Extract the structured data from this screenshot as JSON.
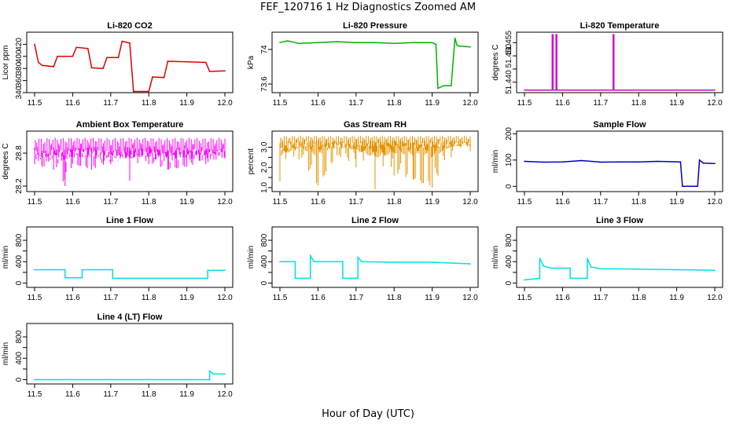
{
  "figure": {
    "title": "FEF_120716  1 Hz Diagnostics Zoomed AM",
    "xlabel": "Hour of Day (UTC)"
  },
  "chart_data": [
    {
      "type": "line",
      "title": "Li-820 CO2",
      "ylabel": "Licor ppm",
      "color": "#e00000",
      "xlim": [
        11.5,
        12.0
      ],
      "ylim": [
        340,
        440
      ],
      "yticks": [
        340,
        360,
        380,
        400,
        420
      ],
      "xticks": [
        11.5,
        11.6,
        11.7,
        11.8,
        11.9,
        12.0
      ],
      "series": [
        {
          "x": [
            11.5,
            11.51,
            11.52,
            11.55,
            11.56,
            11.6,
            11.61,
            11.64,
            11.65,
            11.68,
            11.69,
            11.72,
            11.73,
            11.75,
            11.76,
            11.8,
            11.81,
            11.84,
            11.85,
            11.95,
            11.96,
            12.0
          ],
          "y": [
            420,
            390,
            385,
            383,
            400,
            400,
            415,
            413,
            381,
            380,
            398,
            398,
            425,
            422,
            342,
            342,
            366,
            365,
            392,
            390,
            375,
            376
          ]
        }
      ]
    },
    {
      "type": "line",
      "title": "Li-820 Pressure",
      "ylabel": "kPa",
      "color": "#00b000",
      "xlim": [
        11.5,
        12.0
      ],
      "ylim": [
        73.5,
        74.2
      ],
      "yticks": [
        73.6,
        74.0
      ],
      "xticks": [
        11.5,
        11.6,
        11.7,
        11.8,
        11.9,
        12.0
      ],
      "series": [
        {
          "x": [
            11.5,
            11.52,
            11.55,
            11.6,
            11.65,
            11.7,
            11.75,
            11.8,
            11.85,
            11.9,
            11.91,
            11.915,
            11.93,
            11.95,
            11.96,
            11.965,
            11.97,
            12.0
          ],
          "y": [
            74.08,
            74.1,
            74.07,
            74.08,
            74.09,
            74.08,
            74.08,
            74.07,
            74.08,
            74.08,
            74.06,
            73.55,
            73.58,
            73.58,
            74.13,
            74.05,
            74.04,
            74.03
          ]
        }
      ]
    },
    {
      "type": "line",
      "title": "Li-820 Temperature",
      "ylabel": "degrees C",
      "color": "#d000d0",
      "xlim": [
        11.5,
        12.0
      ],
      "ylim": [
        51.436,
        51.459
      ],
      "yticks": [
        51.44,
        51.445,
        51.45,
        51.455
      ],
      "ytick_labels": [
        "51.440",
        "",
        "51.450",
        "51.455"
      ],
      "xticks": [
        11.5,
        11.6,
        11.7,
        11.8,
        11.9,
        12.0
      ],
      "series": [
        {
          "x": [
            11.5,
            11.573,
            11.573,
            11.575,
            11.575,
            11.583,
            11.583,
            11.585,
            11.585,
            11.733,
            11.733,
            11.735,
            11.735,
            12.0
          ],
          "y": [
            51.437,
            51.437,
            51.458,
            51.458,
            51.437,
            51.437,
            51.458,
            51.458,
            51.437,
            51.437,
            51.458,
            51.458,
            51.437,
            51.437
          ]
        }
      ]
    },
    {
      "type": "line",
      "title": "Ambient Box Temperature",
      "ylabel": "degrees C",
      "color": "#ff00ff",
      "xlim": [
        11.5,
        12.0
      ],
      "ylim": [
        28.1,
        29.2
      ],
      "yticks": [
        28.2,
        28.8
      ],
      "xticks": [
        11.5,
        11.6,
        11.7,
        11.8,
        11.9,
        12.0
      ],
      "series": [
        {
          "x": [
            11.5,
            11.52,
            11.55,
            11.58,
            11.6,
            11.65,
            11.7,
            11.75,
            11.8,
            11.85,
            11.9,
            11.95,
            12.0
          ],
          "y": [
            28.9,
            28.8,
            28.9,
            28.85,
            28.9,
            28.9,
            28.85,
            28.9,
            28.9,
            28.85,
            28.9,
            28.85,
            28.9
          ],
          "min": [
            28.6,
            28.55,
            28.5,
            28.2,
            28.6,
            28.5,
            28.6,
            28.3,
            28.6,
            28.5,
            28.55,
            28.6,
            28.7
          ],
          "max": [
            29.1,
            29.1,
            29.1,
            29.1,
            29.1,
            29.1,
            29.1,
            29.1,
            29.1,
            29.1,
            29.1,
            29.1,
            29.1
          ]
        }
      ]
    },
    {
      "type": "line",
      "title": "Gas Stream RH",
      "ylabel": "percent",
      "color": "#e59400",
      "xlim": [
        11.5,
        12.0
      ],
      "ylim": [
        0.8,
        3.8
      ],
      "yticks": [
        1.0,
        1.5,
        2.0,
        2.5,
        3.0
      ],
      "ytick_labels": [
        "1.0",
        "",
        "2.0",
        "",
        "3.0"
      ],
      "xticks": [
        11.5,
        11.6,
        11.7,
        11.8,
        11.9,
        12.0
      ],
      "series": [
        {
          "x": [
            11.5,
            11.55,
            11.6,
            11.65,
            11.7,
            11.75,
            11.8,
            11.85,
            11.9,
            11.95,
            12.0
          ],
          "y": [
            3.2,
            3.3,
            3.3,
            3.25,
            3.3,
            3.3,
            3.3,
            3.25,
            3.3,
            3.3,
            3.3
          ],
          "min": [
            1.3,
            2.4,
            1.1,
            2.6,
            2.0,
            0.9,
            1.6,
            1.4,
            1.0,
            2.5,
            2.8
          ],
          "max": [
            3.6,
            3.6,
            3.6,
            3.6,
            3.6,
            3.6,
            3.6,
            3.6,
            3.6,
            3.6,
            3.6
          ]
        }
      ]
    },
    {
      "type": "line",
      "title": "Sample Flow",
      "ylabel": "ml/min",
      "color": "#0000c0",
      "xlim": [
        11.5,
        12.0
      ],
      "ylim": [
        -20,
        210
      ],
      "yticks": [
        0,
        100,
        200
      ],
      "xticks": [
        11.5,
        11.6,
        11.7,
        11.8,
        11.9,
        12.0
      ],
      "series": [
        {
          "x": [
            11.5,
            11.55,
            11.6,
            11.65,
            11.7,
            11.75,
            11.8,
            11.85,
            11.91,
            11.915,
            11.955,
            11.96,
            11.97,
            12.0
          ],
          "y": [
            95,
            92,
            93,
            98,
            92,
            93,
            93,
            95,
            93,
            0,
            0,
            100,
            88,
            87
          ]
        }
      ]
    },
    {
      "type": "line",
      "title": "Line 1 Flow",
      "ylabel": "ml/min",
      "color": "#00e0e0",
      "xlim": [
        11.5,
        12.0
      ],
      "ylim": [
        -80,
        1050
      ],
      "yticks": [
        0,
        200,
        400,
        600,
        800
      ],
      "ytick_labels": [
        "0",
        "",
        "400",
        "",
        "800"
      ],
      "xticks": [
        11.5,
        11.6,
        11.7,
        11.8,
        11.9,
        12.0
      ],
      "series": [
        {
          "x": [
            11.5,
            11.58,
            11.58,
            11.625,
            11.625,
            11.705,
            11.705,
            11.955,
            11.955,
            12.0
          ],
          "y": [
            250,
            250,
            100,
            100,
            250,
            250,
            90,
            90,
            240,
            240
          ]
        }
      ]
    },
    {
      "type": "line",
      "title": "Line 2 Flow",
      "ylabel": "ml/min",
      "color": "#00e0e0",
      "xlim": [
        11.5,
        12.0
      ],
      "ylim": [
        -80,
        1050
      ],
      "yticks": [
        0,
        200,
        400,
        600,
        800
      ],
      "ytick_labels": [
        "0",
        "",
        "400",
        "",
        "800"
      ],
      "xticks": [
        11.5,
        11.6,
        11.7,
        11.8,
        11.9,
        12.0
      ],
      "series": [
        {
          "x": [
            11.5,
            11.54,
            11.54,
            11.58,
            11.58,
            11.59,
            11.665,
            11.665,
            11.705,
            11.705,
            11.715,
            11.8,
            11.9,
            12.0
          ],
          "y": [
            400,
            400,
            90,
            90,
            510,
            400,
            400,
            90,
            90,
            480,
            400,
            390,
            390,
            360
          ]
        }
      ]
    },
    {
      "type": "line",
      "title": "Line 3 Flow",
      "ylabel": "ml/min",
      "color": "#00e0e0",
      "xlim": [
        11.5,
        12.0
      ],
      "ylim": [
        -80,
        1050
      ],
      "yticks": [
        0,
        200,
        400,
        600,
        800
      ],
      "ytick_labels": [
        "0",
        "",
        "400",
        "",
        "800"
      ],
      "xticks": [
        11.5,
        11.6,
        11.7,
        11.8,
        11.9,
        12.0
      ],
      "series": [
        {
          "x": [
            11.5,
            11.54,
            11.54,
            11.55,
            11.57,
            11.62,
            11.62,
            11.665,
            11.665,
            11.675,
            11.7,
            11.8,
            11.9,
            12.0
          ],
          "y": [
            60,
            90,
            460,
            320,
            280,
            280,
            90,
            90,
            460,
            300,
            270,
            260,
            250,
            240
          ]
        }
      ]
    },
    {
      "type": "line",
      "title": "Line 4 (LT) Flow",
      "ylabel": "ml/min",
      "color": "#00e0e0",
      "xlim": [
        11.5,
        12.0
      ],
      "ylim": [
        -80,
        1050
      ],
      "yticks": [
        0,
        200,
        400,
        600,
        800
      ],
      "ytick_labels": [
        "0",
        "",
        "400",
        "",
        "800"
      ],
      "xticks": [
        11.5,
        11.6,
        11.7,
        11.8,
        11.9,
        12.0
      ],
      "series": [
        {
          "x": [
            11.5,
            11.6,
            11.7,
            11.8,
            11.9,
            11.96,
            11.96,
            11.97,
            12.0
          ],
          "y": [
            0,
            0,
            0,
            0,
            0,
            0,
            160,
            110,
            105
          ]
        }
      ]
    }
  ]
}
